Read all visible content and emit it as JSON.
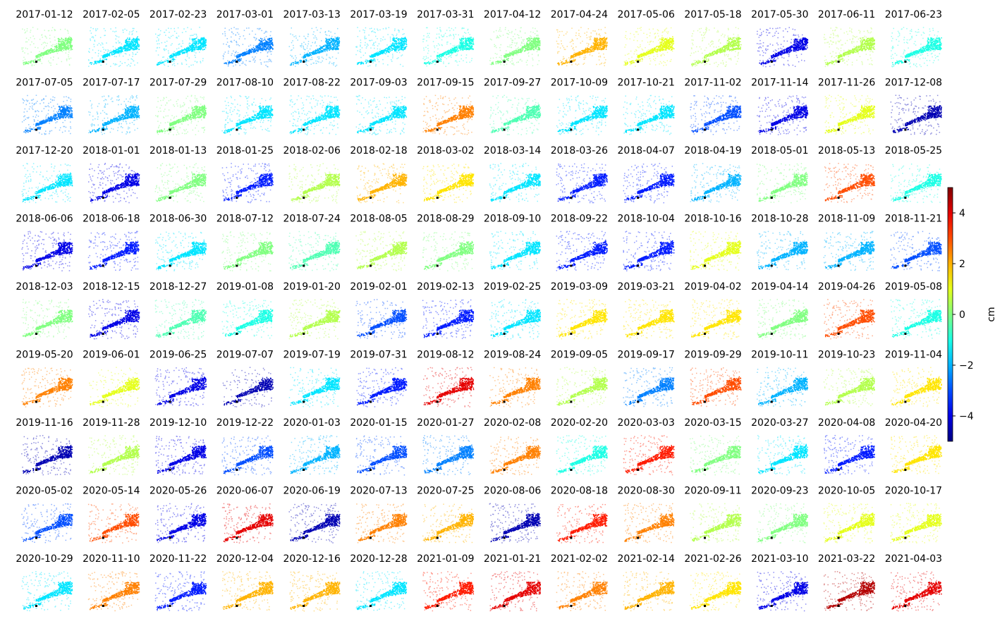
{
  "chart_data": {
    "type": "image_grid",
    "colormap": "jet",
    "columns": 14,
    "panels": [
      {
        "title": "2017-01-12",
        "value": 0
      },
      {
        "title": "2017-02-05",
        "value": -1.5
      },
      {
        "title": "2017-02-23",
        "value": -1.5
      },
      {
        "title": "2017-03-01",
        "value": -2.5
      },
      {
        "title": "2017-03-13",
        "value": -2
      },
      {
        "title": "2017-03-19",
        "value": -1.5
      },
      {
        "title": "2017-03-31",
        "value": -1
      },
      {
        "title": "2017-04-12",
        "value": 0
      },
      {
        "title": "2017-04-24",
        "value": 2
      },
      {
        "title": "2017-05-06",
        "value": 1
      },
      {
        "title": "2017-05-18",
        "value": 0.5
      },
      {
        "title": "2017-05-30",
        "value": -4
      },
      {
        "title": "2017-06-11",
        "value": 0.5
      },
      {
        "title": "2017-06-23",
        "value": -1
      },
      {
        "title": "2017-07-05",
        "value": -2.5
      },
      {
        "title": "2017-07-17",
        "value": -2
      },
      {
        "title": "2017-07-29",
        "value": 0
      },
      {
        "title": "2017-08-10",
        "value": -1.5
      },
      {
        "title": "2017-08-22",
        "value": -1.5
      },
      {
        "title": "2017-09-03",
        "value": -1.5
      },
      {
        "title": "2017-09-15",
        "value": 2.5
      },
      {
        "title": "2017-09-27",
        "value": -0.5
      },
      {
        "title": "2017-10-09",
        "value": -1.5
      },
      {
        "title": "2017-10-21",
        "value": -1.5
      },
      {
        "title": "2017-11-02",
        "value": -3
      },
      {
        "title": "2017-11-14",
        "value": -4
      },
      {
        "title": "2017-11-26",
        "value": 1
      },
      {
        "title": "2017-12-08",
        "value": -4.5
      },
      {
        "title": "2017-12-20",
        "value": -1.5
      },
      {
        "title": "2018-01-01",
        "value": -4
      },
      {
        "title": "2018-01-13",
        "value": 0
      },
      {
        "title": "2018-01-25",
        "value": -3.5
      },
      {
        "title": "2018-02-06",
        "value": 0.5
      },
      {
        "title": "2018-02-18",
        "value": 2
      },
      {
        "title": "2018-03-02",
        "value": 1.5
      },
      {
        "title": "2018-03-14",
        "value": -1.5
      },
      {
        "title": "2018-03-26",
        "value": -3.5
      },
      {
        "title": "2018-04-07",
        "value": -3.5
      },
      {
        "title": "2018-04-19",
        "value": -2
      },
      {
        "title": "2018-05-01",
        "value": 0
      },
      {
        "title": "2018-05-13",
        "value": 3
      },
      {
        "title": "2018-05-25",
        "value": -1
      },
      {
        "title": "2018-06-06",
        "value": -4
      },
      {
        "title": "2018-06-18",
        "value": -3.5
      },
      {
        "title": "2018-06-30",
        "value": -1.5
      },
      {
        "title": "2018-07-12",
        "value": 0
      },
      {
        "title": "2018-07-24",
        "value": -0.5
      },
      {
        "title": "2018-08-05",
        "value": 0.5
      },
      {
        "title": "2018-08-29",
        "value": 0
      },
      {
        "title": "2018-09-10",
        "value": -1.5
      },
      {
        "title": "2018-09-22",
        "value": -3.5
      },
      {
        "title": "2018-10-04",
        "value": -3.5
      },
      {
        "title": "2018-10-16",
        "value": 1
      },
      {
        "title": "2018-10-28",
        "value": -2
      },
      {
        "title": "2018-11-09",
        "value": -2
      },
      {
        "title": "2018-11-21",
        "value": -3
      },
      {
        "title": "2018-12-03",
        "value": 0
      },
      {
        "title": "2018-12-15",
        "value": -4
      },
      {
        "title": "2018-12-27",
        "value": -0.5
      },
      {
        "title": "2019-01-08",
        "value": -1
      },
      {
        "title": "2019-01-20",
        "value": 0.5
      },
      {
        "title": "2019-02-01",
        "value": -3
      },
      {
        "title": "2019-02-13",
        "value": -3.5
      },
      {
        "title": "2019-02-25",
        "value": -1.5
      },
      {
        "title": "2019-03-09",
        "value": 1.5
      },
      {
        "title": "2019-03-21",
        "value": 1.5
      },
      {
        "title": "2019-04-02",
        "value": 1.5
      },
      {
        "title": "2019-04-14",
        "value": 0
      },
      {
        "title": "2019-04-26",
        "value": 3
      },
      {
        "title": "2019-05-08",
        "value": -1
      },
      {
        "title": "2019-05-20",
        "value": 2.5
      },
      {
        "title": "2019-06-01",
        "value": 1
      },
      {
        "title": "2019-06-25",
        "value": -4
      },
      {
        "title": "2019-07-07",
        "value": -4.5
      },
      {
        "title": "2019-07-19",
        "value": -1.5
      },
      {
        "title": "2019-07-31",
        "value": -3.5
      },
      {
        "title": "2019-08-12",
        "value": 4
      },
      {
        "title": "2019-08-24",
        "value": 2.5
      },
      {
        "title": "2019-09-05",
        "value": 0.5
      },
      {
        "title": "2019-09-17",
        "value": -2.5
      },
      {
        "title": "2019-09-29",
        "value": 3
      },
      {
        "title": "2019-10-11",
        "value": -2
      },
      {
        "title": "2019-10-23",
        "value": 0.5
      },
      {
        "title": "2019-11-04",
        "value": 1.5
      },
      {
        "title": "2019-11-16",
        "value": -4.5
      },
      {
        "title": "2019-11-28",
        "value": 0.5
      },
      {
        "title": "2019-12-10",
        "value": -4
      },
      {
        "title": "2019-12-22",
        "value": -3
      },
      {
        "title": "2020-01-03",
        "value": -2
      },
      {
        "title": "2020-01-15",
        "value": -3
      },
      {
        "title": "2020-01-27",
        "value": -2.5
      },
      {
        "title": "2020-02-08",
        "value": 2.5
      },
      {
        "title": "2020-02-20",
        "value": -1
      },
      {
        "title": "2020-03-03",
        "value": 3.5
      },
      {
        "title": "2020-03-15",
        "value": 0
      },
      {
        "title": "2020-03-27",
        "value": -1.5
      },
      {
        "title": "2020-04-08",
        "value": -3.5
      },
      {
        "title": "2020-04-20",
        "value": 1.5
      },
      {
        "title": "2020-05-02",
        "value": -3
      },
      {
        "title": "2020-05-14",
        "value": 3
      },
      {
        "title": "2020-05-26",
        "value": -4
      },
      {
        "title": "2020-06-07",
        "value": 4
      },
      {
        "title": "2020-06-19",
        "value": -4.5
      },
      {
        "title": "2020-07-13",
        "value": 2.5
      },
      {
        "title": "2020-07-25",
        "value": 2
      },
      {
        "title": "2020-08-06",
        "value": -4.5
      },
      {
        "title": "2020-08-18",
        "value": 3.5
      },
      {
        "title": "2020-08-30",
        "value": 2.5
      },
      {
        "title": "2020-09-11",
        "value": 0.5
      },
      {
        "title": "2020-09-23",
        "value": 0
      },
      {
        "title": "2020-10-05",
        "value": 1
      },
      {
        "title": "2020-10-17",
        "value": 1
      },
      {
        "title": "2020-10-29",
        "value": -1.5
      },
      {
        "title": "2020-11-10",
        "value": 2.5
      },
      {
        "title": "2020-11-22",
        "value": -3.5
      },
      {
        "title": "2020-12-04",
        "value": 2
      },
      {
        "title": "2020-12-16",
        "value": 2
      },
      {
        "title": "2020-12-28",
        "value": -1.5
      },
      {
        "title": "2021-01-09",
        "value": 3.5
      },
      {
        "title": "2021-01-21",
        "value": 4
      },
      {
        "title": "2021-02-02",
        "value": 2.5
      },
      {
        "title": "2021-02-14",
        "value": 2
      },
      {
        "title": "2021-02-26",
        "value": 1.5
      },
      {
        "title": "2021-03-10",
        "value": -4
      },
      {
        "title": "2021-03-22",
        "value": 4.5
      },
      {
        "title": "2021-04-03",
        "value": 4
      }
    ],
    "colorbar": {
      "label": "cm",
      "clim": [
        -5,
        5
      ],
      "ticks": [
        {
          "value": -4,
          "label": "−4"
        },
        {
          "value": -2,
          "label": "−2"
        },
        0,
        2,
        4
      ]
    }
  }
}
